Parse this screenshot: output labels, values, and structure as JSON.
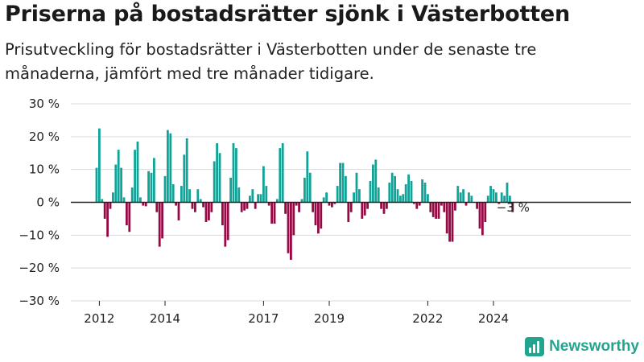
{
  "header": {
    "title": "Priserna på bostadsrätter sjönk i Västerbotten",
    "subtitle": "Prisutveckling för bostadsrätter i Västerbotten under de senaste tre månaderna, jämfört med tre månader tidigare."
  },
  "brand": {
    "name": "Newsworthy",
    "icon": "newsworthy-logo-icon"
  },
  "colors": {
    "positive": "#12a398",
    "negative": "#960945",
    "grid": "#d9d9d9",
    "zero_line": "#222222"
  },
  "chart_data": {
    "type": "bar",
    "title": "Priserna på bostadsrätter sjönk i Västerbotten",
    "xlabel": "",
    "ylabel": "",
    "ylim": [
      -30,
      30
    ],
    "yticks": [
      30,
      20,
      10,
      0,
      -10,
      -20,
      -30
    ],
    "ytick_labels": [
      "30 %",
      "20 %",
      "10 %",
      "0 %",
      "−10 %",
      "−20 %",
      "−30 %"
    ],
    "xticks": [
      {
        "label": "2012",
        "at": "2012-01"
      },
      {
        "label": "2014",
        "at": "2014-01"
      },
      {
        "label": "2017",
        "at": "2017-01"
      },
      {
        "label": "2019",
        "at": "2019-01"
      },
      {
        "label": "2022",
        "at": "2022-01"
      },
      {
        "label": "2024",
        "at": "2024-01"
      }
    ],
    "grid": true,
    "x_start": "2011-12",
    "x_end": "2024-12",
    "unit": "%",
    "values": [
      10.5,
      22.5,
      1,
      -5,
      -10.5,
      -2,
      3,
      11.5,
      16,
      10.5,
      1.5,
      -7,
      -9,
      4.5,
      16,
      18.5,
      1.5,
      -1,
      -1.2,
      9.5,
      9,
      13.5,
      -3,
      -13.5,
      -11,
      8,
      22,
      21,
      5.5,
      -1,
      -5.5,
      5,
      14.5,
      19.5,
      4,
      -2,
      -3,
      4,
      1,
      -1.5,
      -6,
      -5.5,
      -3,
      12.5,
      18,
      15,
      -7,
      -13.5,
      -11.5,
      7.5,
      18,
      16.5,
      4.5,
      -3,
      -2.5,
      -2,
      2,
      4,
      -2,
      2.5,
      2.5,
      11,
      5,
      -1,
      -6.5,
      -6.5,
      1,
      16.5,
      18,
      -3.5,
      -15.5,
      -17.5,
      -10,
      -1,
      -3,
      1,
      7.5,
      15.5,
      9,
      -3,
      -7,
      -9.5,
      -8,
      1.5,
      3,
      -1,
      -1.5,
      -0.5,
      5,
      12,
      12,
      8,
      -6,
      -3,
      3,
      9,
      4,
      -5,
      -4,
      -2,
      6.5,
      11.5,
      13,
      4.5,
      -2,
      -3.5,
      -2,
      6,
      9,
      8,
      4,
      2,
      2.5,
      5.5,
      8.5,
      6.5,
      -0.5,
      -2,
      -1,
      7,
      6,
      2.5,
      -3,
      -4.5,
      -5,
      -5,
      -1,
      -3,
      -9.5,
      -12,
      -12,
      -2.5,
      5,
      3,
      4,
      -1,
      3,
      2,
      0,
      -2,
      -8,
      -10,
      -6,
      2,
      5,
      4,
      3,
      -0.5,
      3,
      2,
      6,
      2,
      -3
    ],
    "annotations": [
      {
        "text": "−3 %",
        "target": "last_bar"
      }
    ]
  }
}
